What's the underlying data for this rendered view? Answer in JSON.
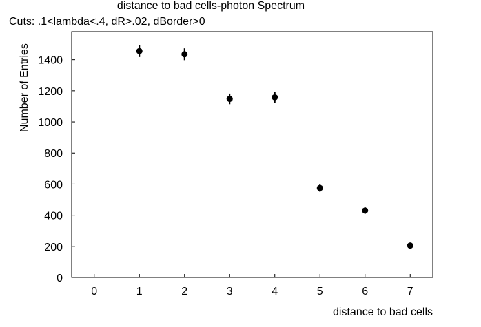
{
  "chart_data": {
    "type": "scatter",
    "title": "distance to bad cells-photon Spectrum",
    "subtitle": "Cuts: .1<lambda<.4, dR>.02, dBorder>0",
    "xlabel": "distance to bad cells",
    "ylabel": "Number of Entries",
    "xlim": [
      -0.5,
      7.5
    ],
    "ylim": [
      0,
      1580
    ],
    "xticks": [
      0,
      1,
      2,
      3,
      4,
      5,
      6,
      7
    ],
    "yticks": [
      0,
      200,
      400,
      600,
      800,
      1000,
      1200,
      1400
    ],
    "grid": false,
    "series": [
      {
        "x": [
          1,
          2,
          3,
          4,
          5,
          6,
          7
        ],
        "y": [
          1455,
          1435,
          1148,
          1158,
          575,
          430,
          205
        ],
        "yerr": [
          38,
          38,
          34,
          34,
          24,
          21,
          14
        ]
      }
    ]
  }
}
